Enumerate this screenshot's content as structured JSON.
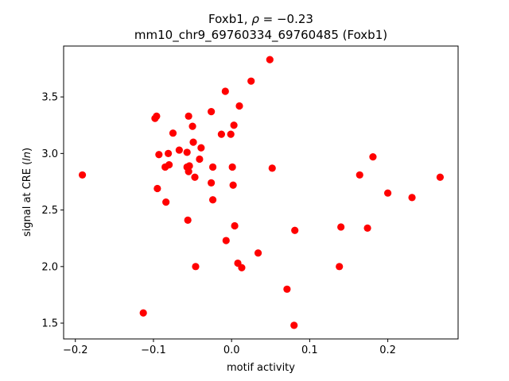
{
  "chart_data": {
    "type": "scatter",
    "title_line1_prefix": "Foxb1, ",
    "title_line1_rho": "ρ",
    "title_line1_suffix": " = −0.23",
    "title_line2": "mm10_chr9_69760334_69760485 (Foxb1)",
    "xlabel": "motif activity",
    "ylabel_prefix": "signal at CRE (",
    "ylabel_italic": "ln",
    "ylabel_suffix": ")",
    "xlim": [
      -0.215,
      0.29
    ],
    "ylim": [
      1.36,
      3.95
    ],
    "xticks": [
      -0.2,
      -0.1,
      0.0,
      0.1,
      0.2
    ],
    "xtick_labels": [
      "−0.2",
      "−0.1",
      "0.0",
      "0.1",
      "0.2"
    ],
    "yticks": [
      1.5,
      2.0,
      2.5,
      3.0,
      3.5
    ],
    "ytick_labels": [
      "1.5",
      "2.0",
      "2.5",
      "3.0",
      "3.5"
    ],
    "grid": false,
    "marker_color": "#ff0000",
    "points": [
      {
        "x": -0.191,
        "y": 2.81
      },
      {
        "x": -0.113,
        "y": 1.59
      },
      {
        "x": -0.098,
        "y": 3.31
      },
      {
        "x": -0.096,
        "y": 3.33
      },
      {
        "x": -0.095,
        "y": 2.69
      },
      {
        "x": -0.093,
        "y": 2.99
      },
      {
        "x": -0.085,
        "y": 2.88
      },
      {
        "x": -0.084,
        "y": 2.57
      },
      {
        "x": -0.081,
        "y": 3.0
      },
      {
        "x": -0.08,
        "y": 2.9
      },
      {
        "x": -0.075,
        "y": 3.18
      },
      {
        "x": -0.067,
        "y": 3.03
      },
      {
        "x": -0.057,
        "y": 3.01
      },
      {
        "x": -0.057,
        "y": 2.88
      },
      {
        "x": -0.056,
        "y": 2.41
      },
      {
        "x": -0.055,
        "y": 2.84
      },
      {
        "x": -0.055,
        "y": 3.33
      },
      {
        "x": -0.054,
        "y": 2.89
      },
      {
        "x": -0.05,
        "y": 3.24
      },
      {
        "x": -0.049,
        "y": 3.1
      },
      {
        "x": -0.047,
        "y": 2.79
      },
      {
        "x": -0.046,
        "y": 2.0
      },
      {
        "x": -0.041,
        "y": 2.95
      },
      {
        "x": -0.039,
        "y": 3.05
      },
      {
        "x": -0.026,
        "y": 3.37
      },
      {
        "x": -0.026,
        "y": 2.74
      },
      {
        "x": -0.024,
        "y": 2.59
      },
      {
        "x": -0.024,
        "y": 2.88
      },
      {
        "x": -0.013,
        "y": 3.17
      },
      {
        "x": -0.008,
        "y": 3.55
      },
      {
        "x": -0.007,
        "y": 2.23
      },
      {
        "x": -0.001,
        "y": 3.17
      },
      {
        "x": 0.001,
        "y": 2.88
      },
      {
        "x": 0.002,
        "y": 2.72
      },
      {
        "x": 0.003,
        "y": 3.25
      },
      {
        "x": 0.004,
        "y": 2.36
      },
      {
        "x": 0.008,
        "y": 2.03
      },
      {
        "x": 0.01,
        "y": 3.42
      },
      {
        "x": 0.013,
        "y": 1.99
      },
      {
        "x": 0.025,
        "y": 3.64
      },
      {
        "x": 0.034,
        "y": 2.12
      },
      {
        "x": 0.049,
        "y": 3.83
      },
      {
        "x": 0.052,
        "y": 2.87
      },
      {
        "x": 0.071,
        "y": 1.8
      },
      {
        "x": 0.08,
        "y": 1.48
      },
      {
        "x": 0.081,
        "y": 2.32
      },
      {
        "x": 0.138,
        "y": 2.0
      },
      {
        "x": 0.14,
        "y": 2.35
      },
      {
        "x": 0.164,
        "y": 2.81
      },
      {
        "x": 0.174,
        "y": 2.34
      },
      {
        "x": 0.181,
        "y": 2.97
      },
      {
        "x": 0.2,
        "y": 2.65
      },
      {
        "x": 0.231,
        "y": 2.61
      },
      {
        "x": 0.267,
        "y": 2.79
      }
    ]
  }
}
